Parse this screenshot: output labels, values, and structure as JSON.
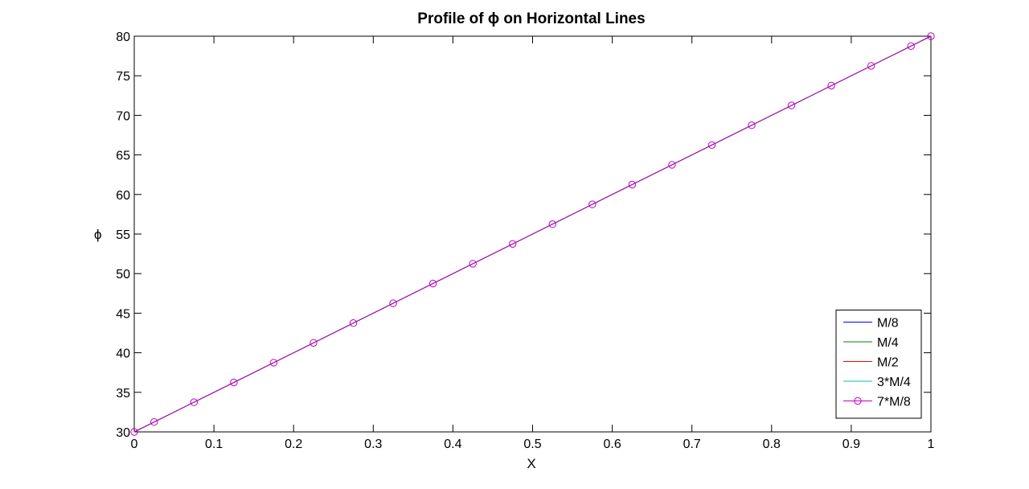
{
  "chart_data": {
    "type": "line",
    "title": "Profile of ϕ on Horizontal Lines",
    "xlabel": "X",
    "ylabel": "ϕ",
    "xlim": [
      0,
      1
    ],
    "ylim": [
      30,
      80
    ],
    "xticks": [
      "0",
      "0.1",
      "0.2",
      "0.3",
      "0.4",
      "0.5",
      "0.6",
      "0.7",
      "0.8",
      "0.9",
      "1"
    ],
    "yticks": [
      "30",
      "35",
      "40",
      "45",
      "50",
      "55",
      "60",
      "65",
      "70",
      "75",
      "80"
    ],
    "grid": false,
    "legend_position": "bottom-right",
    "series": [
      {
        "name": "M/8",
        "color": "#0000ff",
        "marker": "none",
        "x": [
          0,
          1
        ],
        "y": [
          30,
          80
        ]
      },
      {
        "name": "M/4",
        "color": "#008000",
        "marker": "none",
        "x": [
          0,
          1
        ],
        "y": [
          30,
          80
        ]
      },
      {
        "name": "M/2",
        "color": "#ff0000",
        "marker": "none",
        "x": [
          0,
          1
        ],
        "y": [
          30,
          80
        ]
      },
      {
        "name": "3*M/4",
        "color": "#00bfbf",
        "marker": "none",
        "x": [
          0,
          1
        ],
        "y": [
          30,
          80
        ]
      },
      {
        "name": "7*M/8",
        "color": "#bf00bf",
        "marker": "circle",
        "x": [
          0,
          0.025,
          0.075,
          0.125,
          0.175,
          0.225,
          0.275,
          0.325,
          0.375,
          0.425,
          0.475,
          0.525,
          0.575,
          0.625,
          0.675,
          0.725,
          0.775,
          0.825,
          0.875,
          0.925,
          0.975,
          1
        ],
        "y": [
          30,
          31.25,
          33.75,
          36.25,
          38.75,
          41.25,
          43.75,
          46.25,
          48.75,
          51.25,
          53.75,
          56.25,
          58.75,
          61.25,
          63.75,
          66.25,
          68.75,
          71.25,
          73.75,
          76.25,
          78.75,
          80
        ]
      }
    ]
  }
}
